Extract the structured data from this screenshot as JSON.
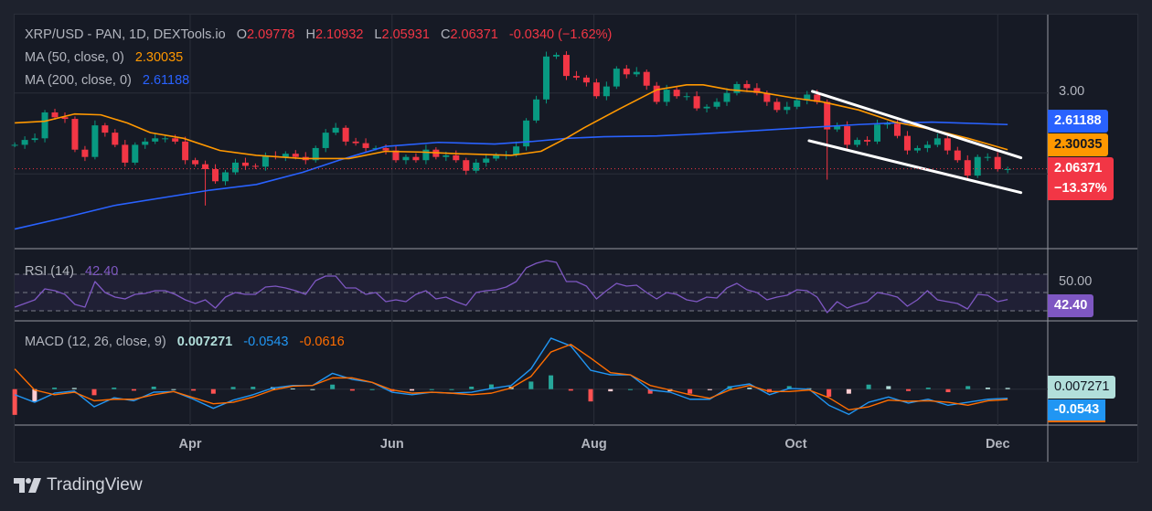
{
  "header": {
    "symbol_line": "XRP/USD - PAN, 1D, DEXTools.io",
    "o_label": "O",
    "o": "2.09778",
    "h_label": "H",
    "h": "2.10932",
    "l_label": "L",
    "l": "2.05931",
    "c_label": "C",
    "c": "2.06371",
    "change": "-0.0340",
    "change_pct": "(−1.62%)"
  },
  "indicators": {
    "ma50": {
      "label": "MA (50, close, 0)",
      "value": "2.30035"
    },
    "ma200": {
      "label": "MA (200, close, 0)",
      "value": "2.61188"
    },
    "rsi": {
      "label": "RSI (14)",
      "value": "42.40"
    },
    "macd": {
      "label": "MACD (12, 26, close, 9)",
      "hist": "0.007271",
      "macd": "-0.0543",
      "signal": "-0.0616"
    }
  },
  "price_axis": {
    "tick": "3.00",
    "ma200_label": "2.61188",
    "ma50_label": "2.30035",
    "last_label": "2.06371",
    "last_change": "−13.37%"
  },
  "rsi_axis": {
    "tick": "50.00",
    "label": "42.40"
  },
  "macd_axis": {
    "hist_label": "0.007271",
    "macd_label": "-0.0543"
  },
  "time_axis": {
    "ticks": [
      {
        "label": "Apr",
        "date": "04-01"
      },
      {
        "label": "Jun",
        "date": "06-01"
      },
      {
        "label": "Aug",
        "date": "08-01"
      },
      {
        "label": "Oct",
        "date": "10-01"
      },
      {
        "label": "Dec",
        "date": "12-01"
      }
    ]
  },
  "footer": {
    "logo_text": "TradingView"
  },
  "colors": {
    "background": "#161a25",
    "up": "#089981",
    "down": "#f23645",
    "ma50": "#ff9800",
    "ma200": "#2962ff",
    "rsi": "#7e57c2",
    "macd": "#2196f3",
    "signal": "#ff6d00",
    "hist_up_strong": "#26a69a",
    "hist_up_weak": "#b2dfdb",
    "hist_down_strong": "#ff5252",
    "hist_down_weak": "#ffcdd2",
    "channel": "#ffffff"
  },
  "chart_data": {
    "type": "candlestick",
    "interval": "1D",
    "x_range": [
      "02-07",
      "12-04"
    ],
    "price_grid": [
      2.0,
      3.0
    ],
    "last_price": 2.06371,
    "closes": [
      2.36,
      2.42,
      2.44,
      2.76,
      2.7,
      2.68,
      2.3,
      2.21,
      2.6,
      2.51,
      2.36,
      2.14,
      2.36,
      2.4,
      2.44,
      2.44,
      2.4,
      2.17,
      2.12,
      2.06,
      1.91,
      2.02,
      2.14,
      2.1,
      2.09,
      2.22,
      2.21,
      2.25,
      2.21,
      2.17,
      2.32,
      2.51,
      2.57,
      2.4,
      2.38,
      2.32,
      2.32,
      2.29,
      2.17,
      2.21,
      2.17,
      2.3,
      2.21,
      2.23,
      2.17,
      2.04,
      2.14,
      2.19,
      2.23,
      2.24,
      2.34,
      2.66,
      2.92,
      3.45,
      3.47,
      3.21,
      3.19,
      3.13,
      2.96,
      3.08,
      3.3,
      3.23,
      3.26,
      3.09,
      2.89,
      3.04,
      2.96,
      2.96,
      2.81,
      2.83,
      2.89,
      3.0,
      3.11,
      3.06,
      3.0,
      2.89,
      2.79,
      2.83,
      2.91,
      2.98,
      2.89,
      2.55,
      2.59,
      2.36,
      2.42,
      2.4,
      2.61,
      2.62,
      2.47,
      2.29,
      2.32,
      2.36,
      2.44,
      2.29,
      2.17,
      1.98,
      2.21,
      2.21,
      2.06,
      2.06
    ],
    "extreme_lows": [
      {
        "date": "04-07",
        "value": 1.61
      },
      {
        "date": "10-10",
        "value": 1.93
      }
    ],
    "ma50": [
      [
        "02-07",
        2.63
      ],
      [
        "02-16",
        2.65
      ],
      [
        "02-25",
        2.74
      ],
      [
        "03-05",
        2.73
      ],
      [
        "03-13",
        2.63
      ],
      [
        "03-20",
        2.51
      ],
      [
        "03-30",
        2.44
      ],
      [
        "04-10",
        2.29
      ],
      [
        "04-21",
        2.23
      ],
      [
        "05-05",
        2.19
      ],
      [
        "05-19",
        2.19
      ],
      [
        "05-30",
        2.28
      ],
      [
        "06-10",
        2.27
      ],
      [
        "06-21",
        2.25
      ],
      [
        "07-07",
        2.23
      ],
      [
        "07-16",
        2.28
      ],
      [
        "07-24",
        2.45
      ],
      [
        "07-29",
        2.57
      ],
      [
        "08-09",
        2.81
      ],
      [
        "08-20",
        3.04
      ],
      [
        "08-29",
        3.1
      ],
      [
        "09-03",
        3.1
      ],
      [
        "09-11",
        3.04
      ],
      [
        "09-20",
        3.01
      ],
      [
        "09-30",
        2.94
      ],
      [
        "10-09",
        2.89
      ],
      [
        "10-20",
        2.79
      ],
      [
        "10-31",
        2.64
      ],
      [
        "11-11",
        2.55
      ],
      [
        "11-22",
        2.44
      ],
      [
        "12-04",
        2.3
      ]
    ],
    "ma200": [
      [
        "02-07",
        1.32
      ],
      [
        "02-22",
        1.46
      ],
      [
        "03-09",
        1.61
      ],
      [
        "04-07",
        1.8
      ],
      [
        "04-21",
        1.87
      ],
      [
        "05-05",
        2.02
      ],
      [
        "05-16",
        2.17
      ],
      [
        "05-30",
        2.34
      ],
      [
        "06-15",
        2.39
      ],
      [
        "07-02",
        2.37
      ],
      [
        "07-13",
        2.4
      ],
      [
        "07-24",
        2.44
      ],
      [
        "08-04",
        2.46
      ],
      [
        "08-20",
        2.47
      ],
      [
        "08-31",
        2.49
      ],
      [
        "09-17",
        2.53
      ],
      [
        "10-03",
        2.57
      ],
      [
        "10-20",
        2.61
      ],
      [
        "10-31",
        2.63
      ],
      [
        "11-11",
        2.64
      ],
      [
        "12-04",
        2.61
      ]
    ],
    "channel_upper": [
      [
        "10-06",
        3.02
      ],
      [
        "12-08",
        2.2
      ]
    ],
    "channel_lower": [
      [
        "10-05",
        2.41
      ],
      [
        "12-08",
        1.77
      ]
    ],
    "rsi": {
      "levels": [
        70,
        50,
        30
      ],
      "values": [
        34,
        38,
        42,
        54,
        52,
        48,
        37,
        34,
        62,
        50,
        45,
        43,
        48,
        49,
        52,
        52,
        48,
        42,
        38,
        42,
        33,
        45,
        50,
        48,
        48,
        56,
        57,
        55,
        52,
        48,
        63,
        68,
        68,
        55,
        55,
        48,
        50,
        40,
        42,
        40,
        48,
        52,
        43,
        45,
        40,
        36,
        50,
        52,
        53,
        56,
        62,
        77,
        82,
        85,
        83,
        62,
        62,
        57,
        43,
        52,
        60,
        57,
        58,
        50,
        43,
        50,
        48,
        42,
        40,
        45,
        44,
        55,
        60,
        53,
        50,
        42,
        45,
        47,
        53,
        52,
        45,
        28,
        40,
        33,
        37,
        40,
        50,
        48,
        45,
        35,
        42,
        52,
        42,
        40,
        38,
        32,
        48,
        47,
        40,
        42.4
      ]
    },
    "macd": {
      "macd": [
        -0.033,
        -0.078,
        -0.024,
        -0.011,
        -0.105,
        -0.051,
        -0.069,
        -0.018,
        -0.014,
        -0.06,
        -0.114,
        -0.065,
        -0.033,
        0.007,
        0.022,
        0.022,
        0.094,
        0.058,
        0.04,
        -0.018,
        -0.033,
        -0.018,
        -0.024,
        -0.018,
        0.004,
        0.022,
        0.121,
        0.303,
        0.257,
        0.112,
        0.085,
        0.085,
        -0.005,
        -0.018,
        -0.06,
        -0.06,
        0.013,
        0.031,
        -0.033,
        0.004,
        0,
        -0.096,
        -0.15,
        -0.078,
        -0.047,
        -0.083,
        -0.06,
        -0.096,
        -0.078,
        -0.06,
        -0.0543
      ],
      "signal": [
        0.12,
        -0.005,
        -0.033,
        -0.018,
        -0.069,
        -0.06,
        -0.06,
        -0.033,
        -0.014,
        -0.051,
        -0.087,
        -0.078,
        -0.047,
        -0.005,
        0.018,
        0.022,
        0.067,
        0.067,
        0.04,
        -0.005,
        -0.024,
        -0.018,
        -0.024,
        -0.033,
        -0.024,
        0.007,
        0.076,
        0.221,
        0.266,
        0.185,
        0.098,
        0.085,
        0.022,
        -0.005,
        -0.033,
        -0.054,
        -0.005,
        0.022,
        -0.014,
        -0.014,
        -0.005,
        -0.051,
        -0.123,
        -0.105,
        -0.065,
        -0.072,
        -0.069,
        -0.078,
        -0.096,
        -0.069,
        -0.0616
      ]
    }
  }
}
